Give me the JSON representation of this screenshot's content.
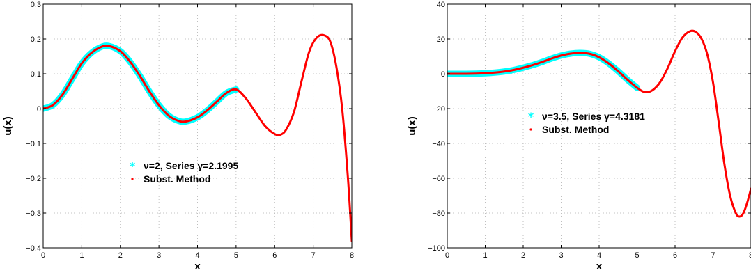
{
  "chart_data": [
    {
      "type": "line",
      "xlabel": "x",
      "ylabel": "u(x)",
      "xlim": [
        0,
        8
      ],
      "ylim": [
        -0.4,
        0.3
      ],
      "xticks": [
        0,
        1,
        2,
        3,
        4,
        5,
        6,
        7,
        8
      ],
      "yticks": [
        -0.4,
        -0.3,
        -0.2,
        -0.1,
        0,
        0.1,
        0.2,
        0.3
      ],
      "xtick_labels": [
        "0",
        "1",
        "2",
        "3",
        "4",
        "5",
        "6",
        "7",
        "8"
      ],
      "ytick_labels": [
        "−0.4",
        "−0.3",
        "−0.2",
        "−0.1",
        "0",
        "0.1",
        "0.2",
        "0.3"
      ],
      "grid": true,
      "legend_position": "center",
      "series": [
        {
          "name": "ν=2, Series γ=2.1995",
          "marker": "asterisk",
          "color": "#00ffff",
          "x": [
            0,
            0.25,
            0.5,
            0.75,
            1.0,
            1.25,
            1.5,
            1.7,
            2.0,
            2.25,
            2.5,
            2.75,
            3.0,
            3.25,
            3.5,
            3.7,
            4.0,
            4.25,
            4.5,
            4.75,
            5.0
          ],
          "y": [
            0,
            0.01,
            0.04,
            0.085,
            0.13,
            0.16,
            0.177,
            0.18,
            0.165,
            0.135,
            0.095,
            0.05,
            0.01,
            -0.02,
            -0.035,
            -0.037,
            -0.025,
            -0.005,
            0.02,
            0.045,
            0.055
          ]
        },
        {
          "name": "Subst. Method",
          "marker": "dot",
          "color": "#ff0000",
          "x": [
            0,
            0.25,
            0.5,
            0.75,
            1.0,
            1.25,
            1.5,
            1.7,
            2.0,
            2.25,
            2.5,
            2.75,
            3.0,
            3.25,
            3.5,
            3.7,
            4.0,
            4.25,
            4.5,
            4.75,
            5.0,
            5.25,
            5.5,
            5.75,
            6.0,
            6.15,
            6.3,
            6.5,
            6.7,
            6.9,
            7.1,
            7.3,
            7.45,
            7.6,
            7.75,
            7.9,
            8.0
          ],
          "y": [
            0,
            0.01,
            0.04,
            0.085,
            0.13,
            0.16,
            0.177,
            0.18,
            0.165,
            0.135,
            0.095,
            0.05,
            0.01,
            -0.02,
            -0.035,
            -0.037,
            -0.025,
            -0.005,
            0.02,
            0.045,
            0.055,
            0.03,
            -0.01,
            -0.05,
            -0.073,
            -0.075,
            -0.06,
            -0.01,
            0.08,
            0.165,
            0.205,
            0.21,
            0.19,
            0.12,
            0.0,
            -0.2,
            -0.38
          ]
        }
      ]
    },
    {
      "type": "line",
      "xlabel": "x",
      "ylabel": "u(x)",
      "xlim": [
        0,
        8
      ],
      "ylim": [
        -100,
        40
      ],
      "xticks": [
        0,
        1,
        2,
        3,
        4,
        5,
        6,
        7,
        8
      ],
      "yticks": [
        -100,
        -80,
        -60,
        -40,
        -20,
        0,
        20,
        40
      ],
      "xtick_labels": [
        "0",
        "1",
        "2",
        "3",
        "4",
        "5",
        "6",
        "7",
        "8"
      ],
      "ytick_labels": [
        "−100",
        "−80",
        "−60",
        "−40",
        "−20",
        "0",
        "20",
        "40"
      ],
      "grid": true,
      "legend_position": "center",
      "series": [
        {
          "name": "ν=3.5, Series γ=4.3181",
          "marker": "asterisk",
          "color": "#00ffff",
          "x": [
            0,
            0.25,
            0.5,
            0.75,
            1.0,
            1.25,
            1.5,
            1.75,
            2.0,
            2.25,
            2.5,
            2.75,
            3.0,
            3.25,
            3.5,
            3.75,
            4.0,
            4.25,
            4.5,
            4.75,
            5.0
          ],
          "y": [
            0,
            0,
            0,
            0.1,
            0.3,
            0.7,
            1.3,
            2.2,
            3.5,
            5.0,
            6.8,
            8.8,
            10.5,
            11.6,
            12.0,
            11.5,
            9.5,
            6.0,
            1.5,
            -3.5,
            -8.0
          ]
        },
        {
          "name": "Subst. Method",
          "marker": "dot",
          "color": "#ff0000",
          "x": [
            0,
            0.25,
            0.5,
            0.75,
            1.0,
            1.25,
            1.5,
            1.75,
            2.0,
            2.25,
            2.5,
            2.75,
            3.0,
            3.25,
            3.5,
            3.75,
            4.0,
            4.25,
            4.5,
            4.75,
            5.0,
            5.2,
            5.4,
            5.6,
            5.8,
            6.0,
            6.2,
            6.4,
            6.55,
            6.7,
            6.85,
            7.0,
            7.15,
            7.3,
            7.45,
            7.6,
            7.7,
            7.8,
            7.9,
            8.0
          ],
          "y": [
            0,
            0,
            0,
            0.1,
            0.3,
            0.7,
            1.3,
            2.2,
            3.5,
            5.0,
            6.8,
            8.8,
            10.5,
            11.6,
            12.0,
            11.5,
            9.5,
            6.0,
            1.5,
            -3.5,
            -8.0,
            -10.5,
            -9.5,
            -5.0,
            3.0,
            13.0,
            21.0,
            24.5,
            24.0,
            20.0,
            11.0,
            -5.0,
            -28.0,
            -52.0,
            -70.0,
            -80.0,
            -82.0,
            -80.0,
            -74.0,
            -66.0
          ]
        }
      ]
    }
  ]
}
